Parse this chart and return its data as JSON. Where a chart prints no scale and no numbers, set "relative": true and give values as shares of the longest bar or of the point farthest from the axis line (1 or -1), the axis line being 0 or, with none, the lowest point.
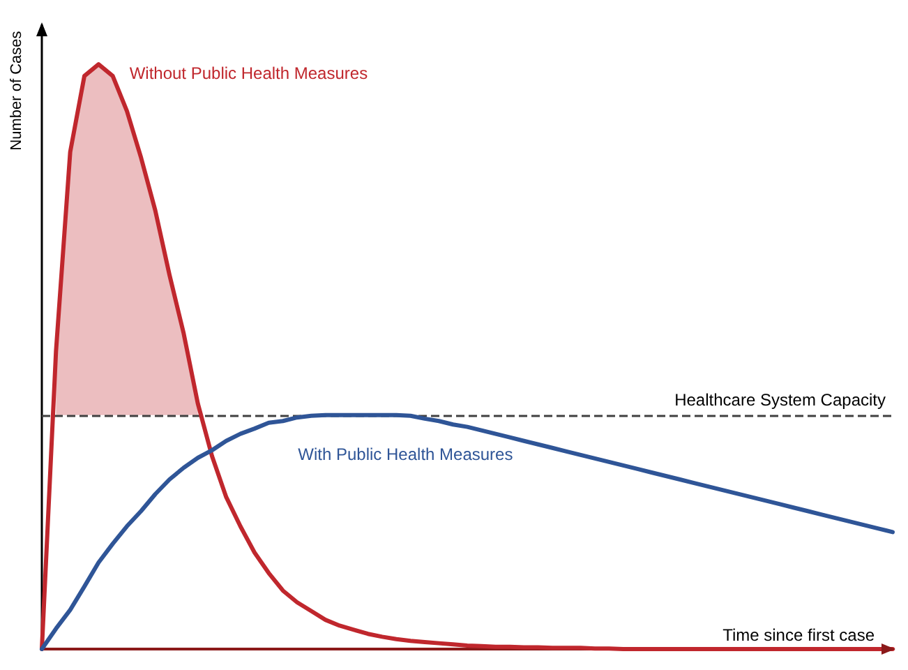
{
  "chart_data": {
    "type": "line",
    "relative": true,
    "xlabel": "Time since first case",
    "ylabel": "Number of Cases",
    "legend": false,
    "grid": false,
    "marker": "none",
    "line_style": "solid",
    "categories": [
      null,
      null,
      null,
      null,
      null,
      null,
      null,
      null,
      null,
      null,
      null,
      null,
      null,
      null,
      null,
      null,
      null,
      null,
      null,
      null,
      null,
      null,
      null,
      null,
      null,
      null,
      null,
      null,
      null,
      null,
      null,
      null,
      null,
      null,
      null,
      null,
      null,
      null,
      null,
      null,
      null,
      null,
      null,
      null,
      null,
      null,
      null,
      null,
      null,
      null,
      null,
      null,
      null,
      null,
      null,
      null,
      null,
      null,
      null,
      null,
      null
    ],
    "series": [
      {
        "name": "Without Public Health Measures",
        "color": "#c0272d",
        "values": [
          0,
          0.51,
          0.85,
          0.98,
          1.0,
          0.98,
          0.92,
          0.84,
          0.75,
          0.64,
          0.54,
          0.42,
          0.33,
          0.26,
          0.21,
          0.165,
          0.13,
          0.1,
          0.08,
          0.065,
          0.05,
          0.04,
          0.033,
          0.026,
          0.021,
          0.017,
          0.014,
          0.012,
          0.01,
          0.008,
          0.006,
          0.005,
          0.004,
          0.004,
          0.003,
          0.003,
          0.002,
          0.002,
          0.002,
          0.001,
          0.001,
          0,
          0,
          0,
          0,
          0,
          0,
          0,
          0,
          0,
          0,
          0,
          0,
          0,
          0,
          0,
          0,
          0,
          0,
          0,
          0
        ],
        "lower": [
          null,
          0.4,
          0.4,
          0.4,
          0.4,
          0.4,
          0.4,
          0.4,
          0.4,
          0.4,
          0.4,
          0.4,
          null,
          null,
          null,
          null,
          null,
          null,
          null,
          null,
          null,
          null,
          null,
          null,
          null,
          null,
          null,
          null,
          null,
          null,
          null,
          null,
          null,
          null,
          null,
          null,
          null,
          null,
          null,
          null,
          null,
          null,
          null,
          null,
          null,
          null,
          null,
          null,
          null,
          null,
          null,
          null,
          null,
          null,
          null,
          null,
          null,
          null,
          null,
          null,
          null
        ],
        "upper": [
          null,
          0.51,
          0.85,
          0.98,
          1.0,
          0.98,
          0.92,
          0.84,
          0.75,
          0.64,
          0.54,
          0.42,
          null,
          null,
          null,
          null,
          null,
          null,
          null,
          null,
          null,
          null,
          null,
          null,
          null,
          null,
          null,
          null,
          null,
          null,
          null,
          null,
          null,
          null,
          null,
          null,
          null,
          null,
          null,
          null,
          null,
          null,
          null,
          null,
          null,
          null,
          null,
          null,
          null,
          null,
          null,
          null,
          null,
          null,
          null,
          null,
          null,
          null,
          null,
          null,
          null
        ]
      },
      {
        "name": "With Public Health Measures",
        "color": "#2f5597",
        "values": [
          0,
          0.035,
          0.067,
          0.107,
          0.148,
          0.18,
          0.21,
          0.236,
          0.265,
          0.29,
          0.31,
          0.327,
          0.34,
          0.356,
          0.368,
          0.377,
          0.387,
          0.39,
          0.396,
          0.399,
          0.4,
          0.4,
          0.4,
          0.4,
          0.4,
          0.4,
          0.399,
          0.394,
          0.39,
          0.384,
          0.38,
          0.374,
          0.368,
          0.362,
          0.356,
          0.35,
          0.344,
          0.338,
          0.332,
          0.326,
          0.32,
          0.314,
          0.308,
          0.302,
          0.296,
          0.29,
          0.284,
          0.278,
          0.272,
          0.266,
          0.26,
          0.254,
          0.248,
          0.242,
          0.236,
          0.23,
          0.224,
          0.218,
          0.212,
          0.206,
          0.2
        ]
      }
    ],
    "ref_lines": [
      {
        "axis": "y",
        "value": 0.4,
        "label": "Healthcare System Capacity",
        "color": "#404040",
        "line_style": "dashed"
      }
    ]
  }
}
